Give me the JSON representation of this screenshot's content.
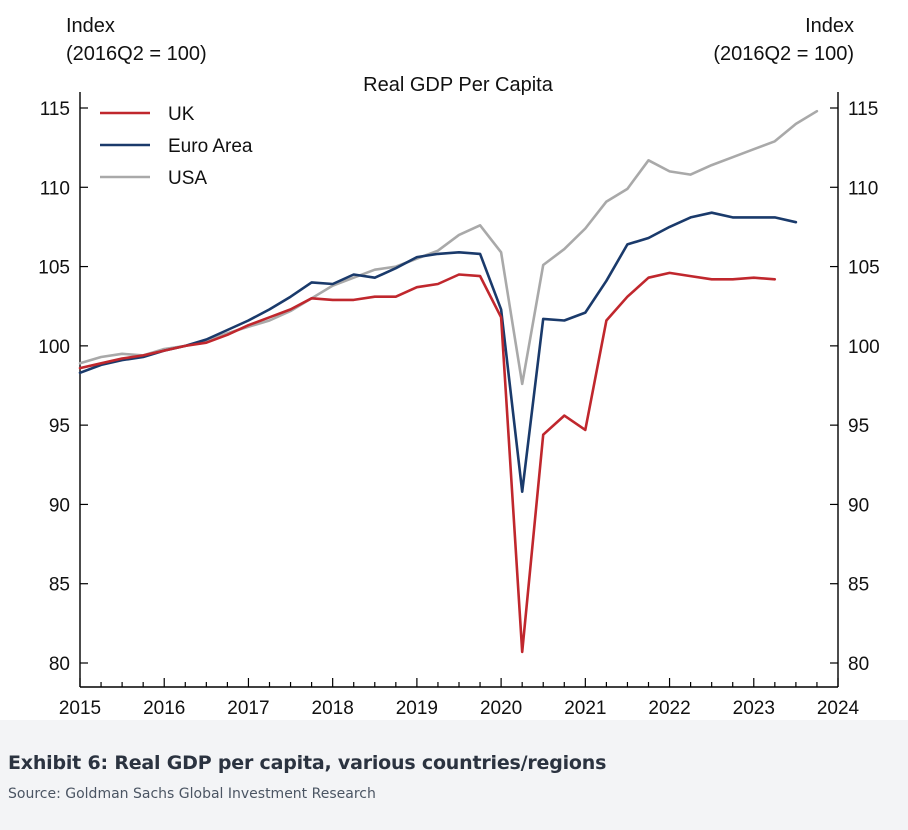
{
  "caption": {
    "title": "Exhibit 6: Real GDP per capita, various countries/regions",
    "source": "Source: Goldman Sachs Global Investment Research"
  },
  "chart_data": {
    "type": "line",
    "title": "Real GDP Per Capita",
    "y_axis_left_label": [
      "Index",
      "(2016Q2 = 100)"
    ],
    "y_axis_right_label": [
      "Index",
      "(2016Q2 = 100)"
    ],
    "xlim": [
      2015,
      2024
    ],
    "ylim": [
      80,
      115
    ],
    "x_ticks": [
      "2015",
      "2016",
      "2017",
      "2018",
      "2019",
      "2020",
      "2021",
      "2022",
      "2023",
      "2024"
    ],
    "y_ticks": [
      80,
      85,
      90,
      95,
      100,
      105,
      110,
      115
    ],
    "legend_position": "top-left",
    "grid": false,
    "series": [
      {
        "name": "UK",
        "color": "#c0272d",
        "x": [
          2015.0,
          2015.25,
          2015.5,
          2015.75,
          2016.0,
          2016.25,
          2016.5,
          2016.75,
          2017.0,
          2017.25,
          2017.5,
          2017.75,
          2018.0,
          2018.25,
          2018.5,
          2018.75,
          2019.0,
          2019.25,
          2019.5,
          2019.75,
          2020.0,
          2020.25,
          2020.5,
          2020.75,
          2021.0,
          2021.25,
          2021.5,
          2021.75,
          2022.0,
          2022.25,
          2022.5,
          2022.75,
          2023.0,
          2023.25
        ],
        "values": [
          98.6,
          98.9,
          99.2,
          99.4,
          99.7,
          100.0,
          100.2,
          100.7,
          101.3,
          101.8,
          102.3,
          103.0,
          102.9,
          102.9,
          103.1,
          103.1,
          103.7,
          103.9,
          104.5,
          104.4,
          101.8,
          80.7,
          94.4,
          95.6,
          94.7,
          101.6,
          103.1,
          104.3,
          104.6,
          104.4,
          104.2,
          104.2,
          104.3,
          104.2
        ]
      },
      {
        "name": "Euro Area",
        "color": "#1a3a6b",
        "x": [
          2015.0,
          2015.25,
          2015.5,
          2015.75,
          2016.0,
          2016.25,
          2016.5,
          2016.75,
          2017.0,
          2017.25,
          2017.5,
          2017.75,
          2018.0,
          2018.25,
          2018.5,
          2018.75,
          2019.0,
          2019.25,
          2019.5,
          2019.75,
          2020.0,
          2020.25,
          2020.5,
          2020.75,
          2021.0,
          2021.25,
          2021.5,
          2021.75,
          2022.0,
          2022.25,
          2022.5,
          2022.75,
          2023.0,
          2023.25,
          2023.5
        ],
        "values": [
          98.3,
          98.8,
          99.1,
          99.3,
          99.7,
          100.0,
          100.4,
          101.0,
          101.6,
          102.3,
          103.1,
          104.0,
          103.9,
          104.5,
          104.3,
          104.9,
          105.6,
          105.8,
          105.9,
          105.8,
          102.3,
          90.8,
          101.7,
          101.6,
          102.1,
          104.1,
          106.4,
          106.8,
          107.5,
          108.1,
          108.4,
          108.1,
          108.1,
          108.1,
          107.8
        ]
      },
      {
        "name": "USA",
        "color": "#a9a9a9",
        "x": [
          2015.0,
          2015.25,
          2015.5,
          2015.75,
          2016.0,
          2016.25,
          2016.5,
          2016.75,
          2017.0,
          2017.25,
          2017.5,
          2017.75,
          2018.0,
          2018.25,
          2018.5,
          2018.75,
          2019.0,
          2019.25,
          2019.5,
          2019.75,
          2020.0,
          2020.25,
          2020.5,
          2020.75,
          2021.0,
          2021.25,
          2021.5,
          2021.75,
          2022.0,
          2022.25,
          2022.5,
          2022.75,
          2023.0,
          2023.25,
          2023.5,
          2023.75
        ],
        "values": [
          98.9,
          99.3,
          99.5,
          99.4,
          99.8,
          100.0,
          100.3,
          100.8,
          101.2,
          101.6,
          102.2,
          103.0,
          103.8,
          104.3,
          104.8,
          105.0,
          105.5,
          106.0,
          107.0,
          107.6,
          105.9,
          97.6,
          105.1,
          106.1,
          107.4,
          109.1,
          109.9,
          111.7,
          111.0,
          110.8,
          111.4,
          111.9,
          112.4,
          112.9,
          114.0,
          114.8
        ]
      }
    ]
  }
}
